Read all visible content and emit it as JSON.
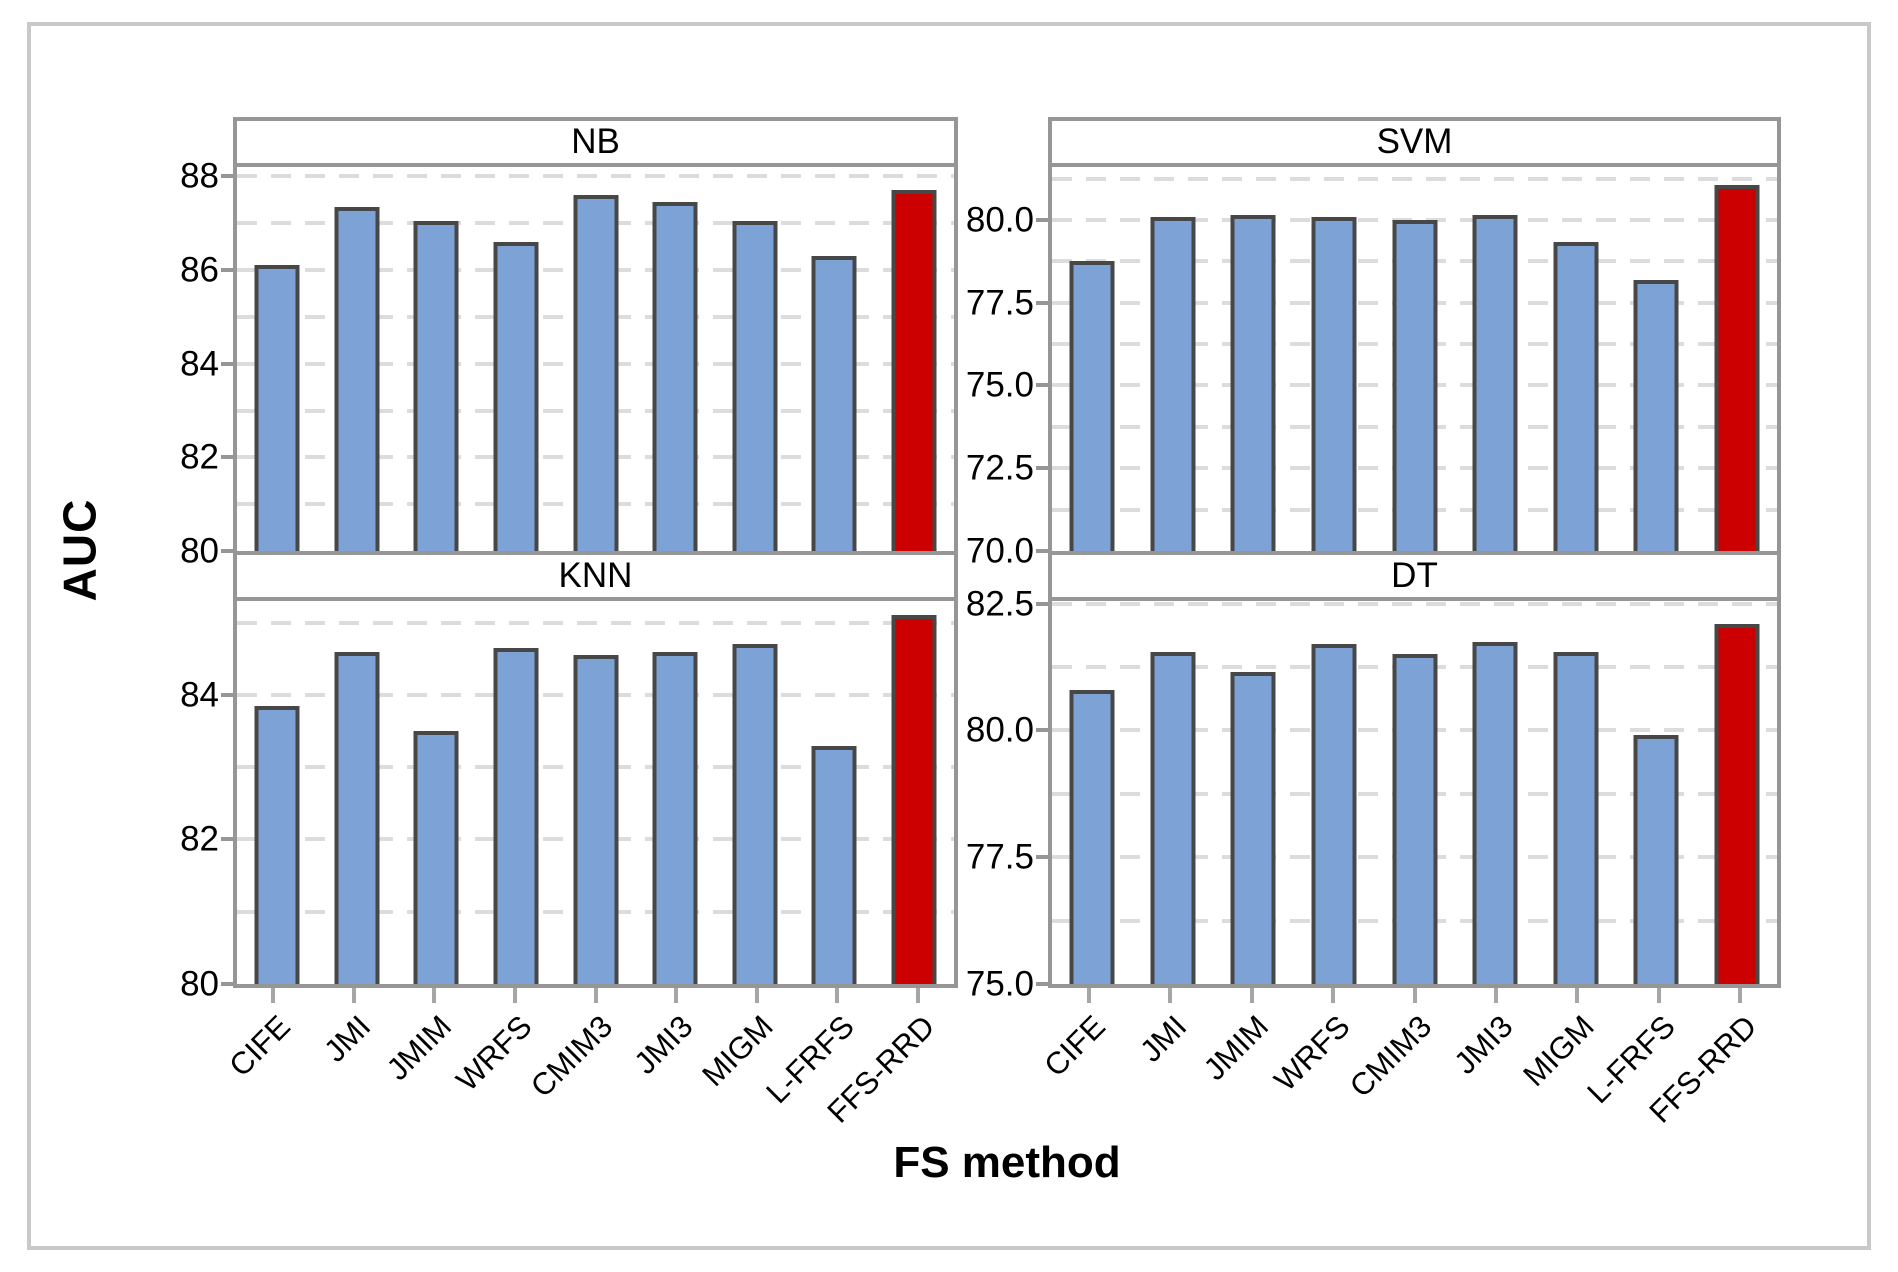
{
  "figure": {
    "y_axis_title": "AUC",
    "x_axis_title": "FS method"
  },
  "colors": {
    "bar_fill": "#7CA2D6",
    "highlight_fill": "#CC0000",
    "bar_stroke": "#474747",
    "panel_border": "#969696",
    "outer_border": "#C9C9C9",
    "grid": "#DCDCDC"
  },
  "chart_data": {
    "type": "bar",
    "title": "",
    "xlabel": "FS method",
    "ylabel": "AUC",
    "layout": "2x2-panel-grid, shared x categories, dashed horizontal gridlines, last category highlighted red",
    "categories": [
      "CIFE",
      "JMI",
      "JMIM",
      "WRFS",
      "CMIM3",
      "JMI3",
      "MIGM",
      "L-FRFS",
      "FFS-RRD"
    ],
    "highlight_category": "FFS-RRD",
    "panels": [
      {
        "title": "NB",
        "grid_position": "top-left",
        "ylim": [
          80,
          88.2
        ],
        "ytick_values": [
          88,
          86,
          84,
          82,
          80
        ],
        "ytick_labels": [
          "88",
          "86",
          "84",
          "82",
          "80"
        ],
        "grid_step": 1,
        "values": [
          86.1,
          87.35,
          87.05,
          86.6,
          87.6,
          87.45,
          87.05,
          86.3,
          87.7
        ]
      },
      {
        "title": "SVM",
        "grid_position": "top-right",
        "ylim": [
          70,
          81.6
        ],
        "ytick_values": [
          80.0,
          77.5,
          75.0,
          72.5,
          70.0
        ],
        "ytick_labels": [
          "80.0",
          "77.5",
          "75.0",
          "72.5",
          "70.0"
        ],
        "grid_step": 1.25,
        "values": [
          78.75,
          80.1,
          80.15,
          80.1,
          80.0,
          80.15,
          79.35,
          78.2,
          81.05
        ]
      },
      {
        "title": "KNN",
        "grid_position": "bottom-left",
        "ylim": [
          80,
          85.3
        ],
        "ytick_values": [
          84,
          82,
          80
        ],
        "ytick_labels": [
          "84",
          "82",
          "80"
        ],
        "grid_step": 1,
        "values": [
          83.85,
          84.6,
          83.5,
          84.65,
          84.55,
          84.6,
          84.7,
          83.3,
          85.1
        ]
      },
      {
        "title": "DT",
        "grid_position": "bottom-right",
        "ylim": [
          75,
          82.55
        ],
        "ytick_values": [
          82.5,
          80.0,
          77.5,
          75.0
        ],
        "ytick_labels": [
          "82.5",
          "80.0",
          "77.5",
          "75.0"
        ],
        "grid_step": 1.25,
        "values": [
          80.8,
          81.55,
          81.15,
          81.7,
          81.5,
          81.75,
          81.55,
          79.9,
          82.1
        ]
      }
    ]
  }
}
